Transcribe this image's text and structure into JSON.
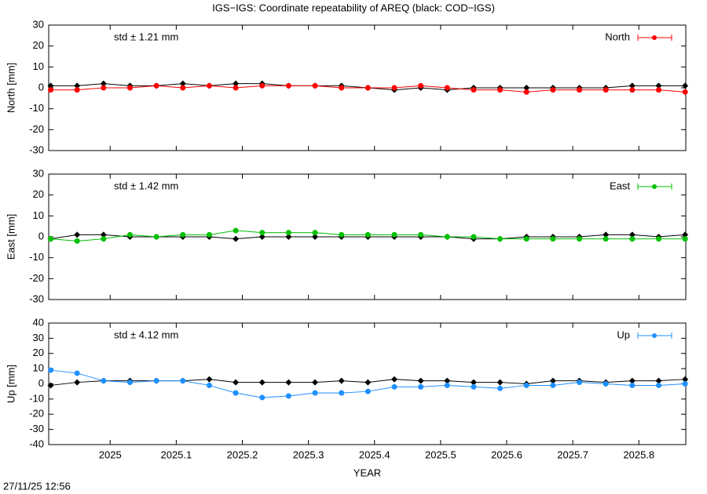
{
  "footer": "27/11/25 12:56",
  "chart_data": [
    {
      "type": "scatter",
      "title": "IGS−IGS: Coordinate repeatability of AREQ (black: COD−IGS)",
      "ylabel": "North [mm]",
      "annotation": "std ± 1.21 mm",
      "annotation_color": "#ff0000",
      "xlim": [
        2024.907,
        2025.871
      ],
      "xticks": [
        2025,
        2025.1,
        2025.2,
        2025.3,
        2025.4,
        2025.5,
        2025.6,
        2025.7,
        2025.8
      ],
      "ylim": [
        -30,
        30
      ],
      "yticks": [
        -30,
        -20,
        -10,
        0,
        10,
        20,
        30
      ],
      "legend": "upper right",
      "x": [
        2024.91,
        2024.95,
        2024.99,
        2025.03,
        2025.07,
        2025.11,
        2025.15,
        2025.19,
        2025.23,
        2025.27,
        2025.31,
        2025.35,
        2025.39,
        2025.43,
        2025.47,
        2025.51,
        2025.55,
        2025.59,
        2025.63,
        2025.67,
        2025.71,
        2025.75,
        2025.79,
        2025.83,
        2025.87
      ],
      "series": [
        {
          "color": "#000000",
          "values": [
            1,
            1,
            2,
            1,
            1,
            2,
            1,
            2,
            2,
            1,
            1,
            1,
            0,
            -1,
            0,
            -1,
            0,
            0,
            0,
            0,
            0,
            0,
            1,
            1,
            1
          ]
        },
        {
          "name": "North",
          "color": "#ff0000",
          "values": [
            -1,
            -1,
            0,
            0,
            1,
            0,
            1,
            0,
            1,
            1,
            1,
            0,
            0,
            0,
            1,
            0,
            -1,
            -1,
            -2,
            -1,
            -1,
            -1,
            -1,
            -1,
            -2
          ]
        }
      ]
    },
    {
      "type": "scatter",
      "ylabel": "East [mm]",
      "annotation": "std ± 1.42 mm",
      "annotation_color": "#00c000",
      "xlim": [
        2024.907,
        2025.871
      ],
      "xticks": [
        2025,
        2025.1,
        2025.2,
        2025.3,
        2025.4,
        2025.5,
        2025.6,
        2025.7,
        2025.8
      ],
      "ylim": [
        -30,
        30
      ],
      "yticks": [
        -30,
        -20,
        -10,
        0,
        10,
        20,
        30
      ],
      "legend": "upper right",
      "x": [
        2024.91,
        2024.95,
        2024.99,
        2025.03,
        2025.07,
        2025.11,
        2025.15,
        2025.19,
        2025.23,
        2025.27,
        2025.31,
        2025.35,
        2025.39,
        2025.43,
        2025.47,
        2025.51,
        2025.55,
        2025.59,
        2025.63,
        2025.67,
        2025.71,
        2025.75,
        2025.79,
        2025.83,
        2025.87
      ],
      "series": [
        {
          "color": "#000000",
          "values": [
            -1,
            1,
            1,
            0,
            0,
            0,
            0,
            -1,
            0,
            0,
            0,
            0,
            0,
            0,
            0,
            0,
            -1,
            -1,
            0,
            0,
            0,
            1,
            1,
            0,
            1
          ]
        },
        {
          "name": "East",
          "color": "#00c000",
          "values": [
            -1,
            -2,
            -1,
            1,
            0,
            1,
            1,
            3,
            2,
            2,
            2,
            1,
            1,
            1,
            1,
            0,
            0,
            -1,
            -1,
            -1,
            -1,
            -1,
            -1,
            -1,
            -1
          ]
        }
      ]
    },
    {
      "type": "scatter",
      "ylabel": "Up [mm]",
      "xlabel": "YEAR",
      "annotation": "std ± 4.12 mm",
      "annotation_color": "#1e90ff",
      "xlim": [
        2024.907,
        2025.871
      ],
      "xticks": [
        2025,
        2025.1,
        2025.2,
        2025.3,
        2025.4,
        2025.5,
        2025.6,
        2025.7,
        2025.8
      ],
      "ylim": [
        -40,
        40
      ],
      "yticks": [
        -40,
        -30,
        -20,
        -10,
        0,
        10,
        20,
        30,
        40
      ],
      "legend": "upper right",
      "x": [
        2024.91,
        2024.95,
        2024.99,
        2025.03,
        2025.07,
        2025.11,
        2025.15,
        2025.19,
        2025.23,
        2025.27,
        2025.31,
        2025.35,
        2025.39,
        2025.43,
        2025.47,
        2025.51,
        2025.55,
        2025.59,
        2025.63,
        2025.67,
        2025.71,
        2025.75,
        2025.79,
        2025.83,
        2025.87
      ],
      "series": [
        {
          "color": "#000000",
          "values": [
            -1,
            1,
            2,
            2,
            2,
            2,
            3,
            1,
            1,
            1,
            1,
            2,
            1,
            3,
            2,
            2,
            1,
            1,
            0,
            2,
            2,
            1,
            2,
            2,
            3
          ]
        },
        {
          "name": "Up",
          "color": "#1e90ff",
          "values": [
            9,
            7,
            2,
            1,
            2,
            2,
            -1,
            -6,
            -9,
            -8,
            -6,
            -6,
            -5,
            -2,
            -2,
            -1,
            -2,
            -3,
            -1,
            -1,
            1,
            0,
            -1,
            -1,
            0
          ]
        }
      ]
    }
  ]
}
